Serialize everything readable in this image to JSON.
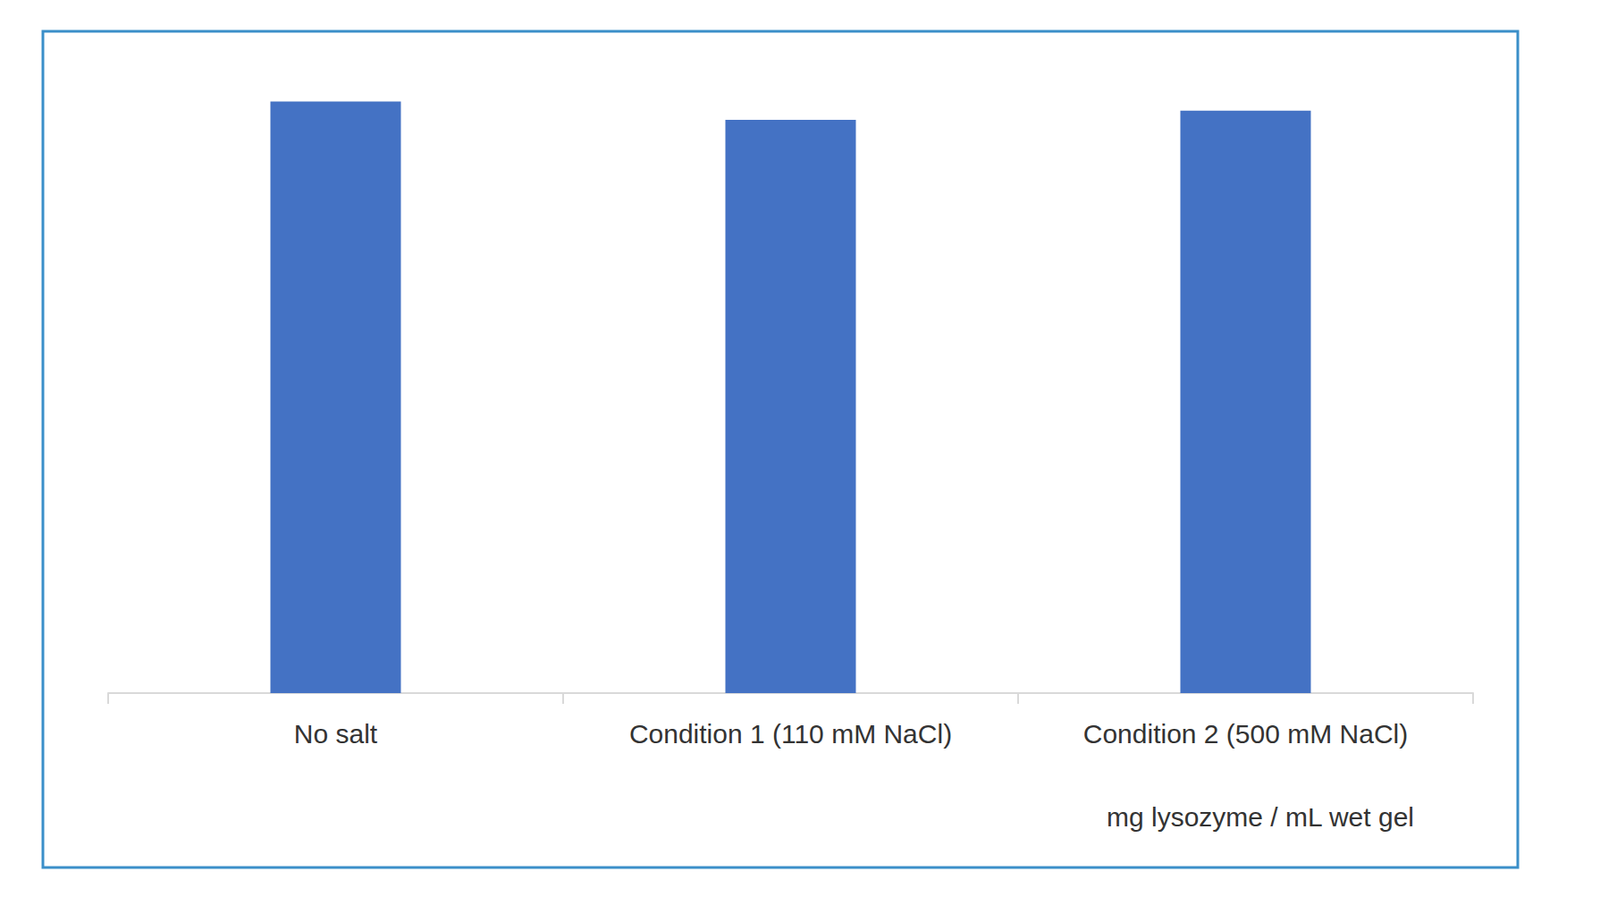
{
  "chart_data": {
    "type": "bar",
    "x_label": "mg lysozyme / mL wet gel",
    "categories": [
      "No salt",
      "Condition 1 (110 mM NaCl)",
      "Condition 2 (500 mM NaCl)"
    ],
    "values": [
      58,
      56.2,
      57.1
    ],
    "color": "#4472c4",
    "ylim": [
      0,
      64
    ],
    "yticks": [
      0,
      64
    ],
    "grid": false,
    "tick_labels": "x"
  }
}
